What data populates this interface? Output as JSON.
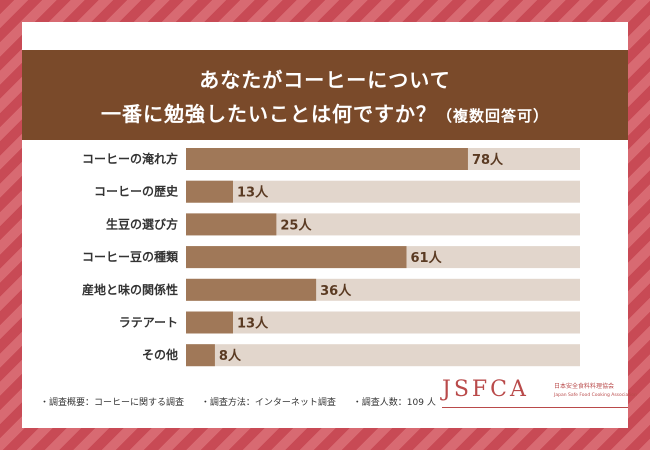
{
  "title": {
    "line1": "あなたがコーヒーについて",
    "line2_main": "一番に勉強したいことは何ですか？",
    "line2_sub": "（複数回答可）"
  },
  "chart_data": {
    "type": "bar",
    "orientation": "horizontal",
    "categories": [
      "コーヒーの淹れ方",
      "コーヒーの歴史",
      "生豆の選び方",
      "コーヒー豆の種類",
      "産地と味の関係性",
      "ラテアート",
      "その他"
    ],
    "values": [
      78,
      13,
      25,
      61,
      36,
      13,
      8
    ],
    "value_labels": [
      "78人",
      "13人",
      "25人",
      "61人",
      "36人",
      "13人",
      "8人"
    ],
    "xlim": [
      0,
      109
    ],
    "grid": false,
    "colors": {
      "bar": "#a07858",
      "track": "#e2d6cc"
    }
  },
  "footer": {
    "item1": "・調査概要：コーヒーに関する調査",
    "item2": "・調査方法：インターネット調査",
    "item3": "・調査人数：109 人"
  },
  "logo": {
    "main": "JSFCA",
    "jp": "日本安全食料料理協会",
    "en": "Japan Safe Food Cooking Association"
  }
}
